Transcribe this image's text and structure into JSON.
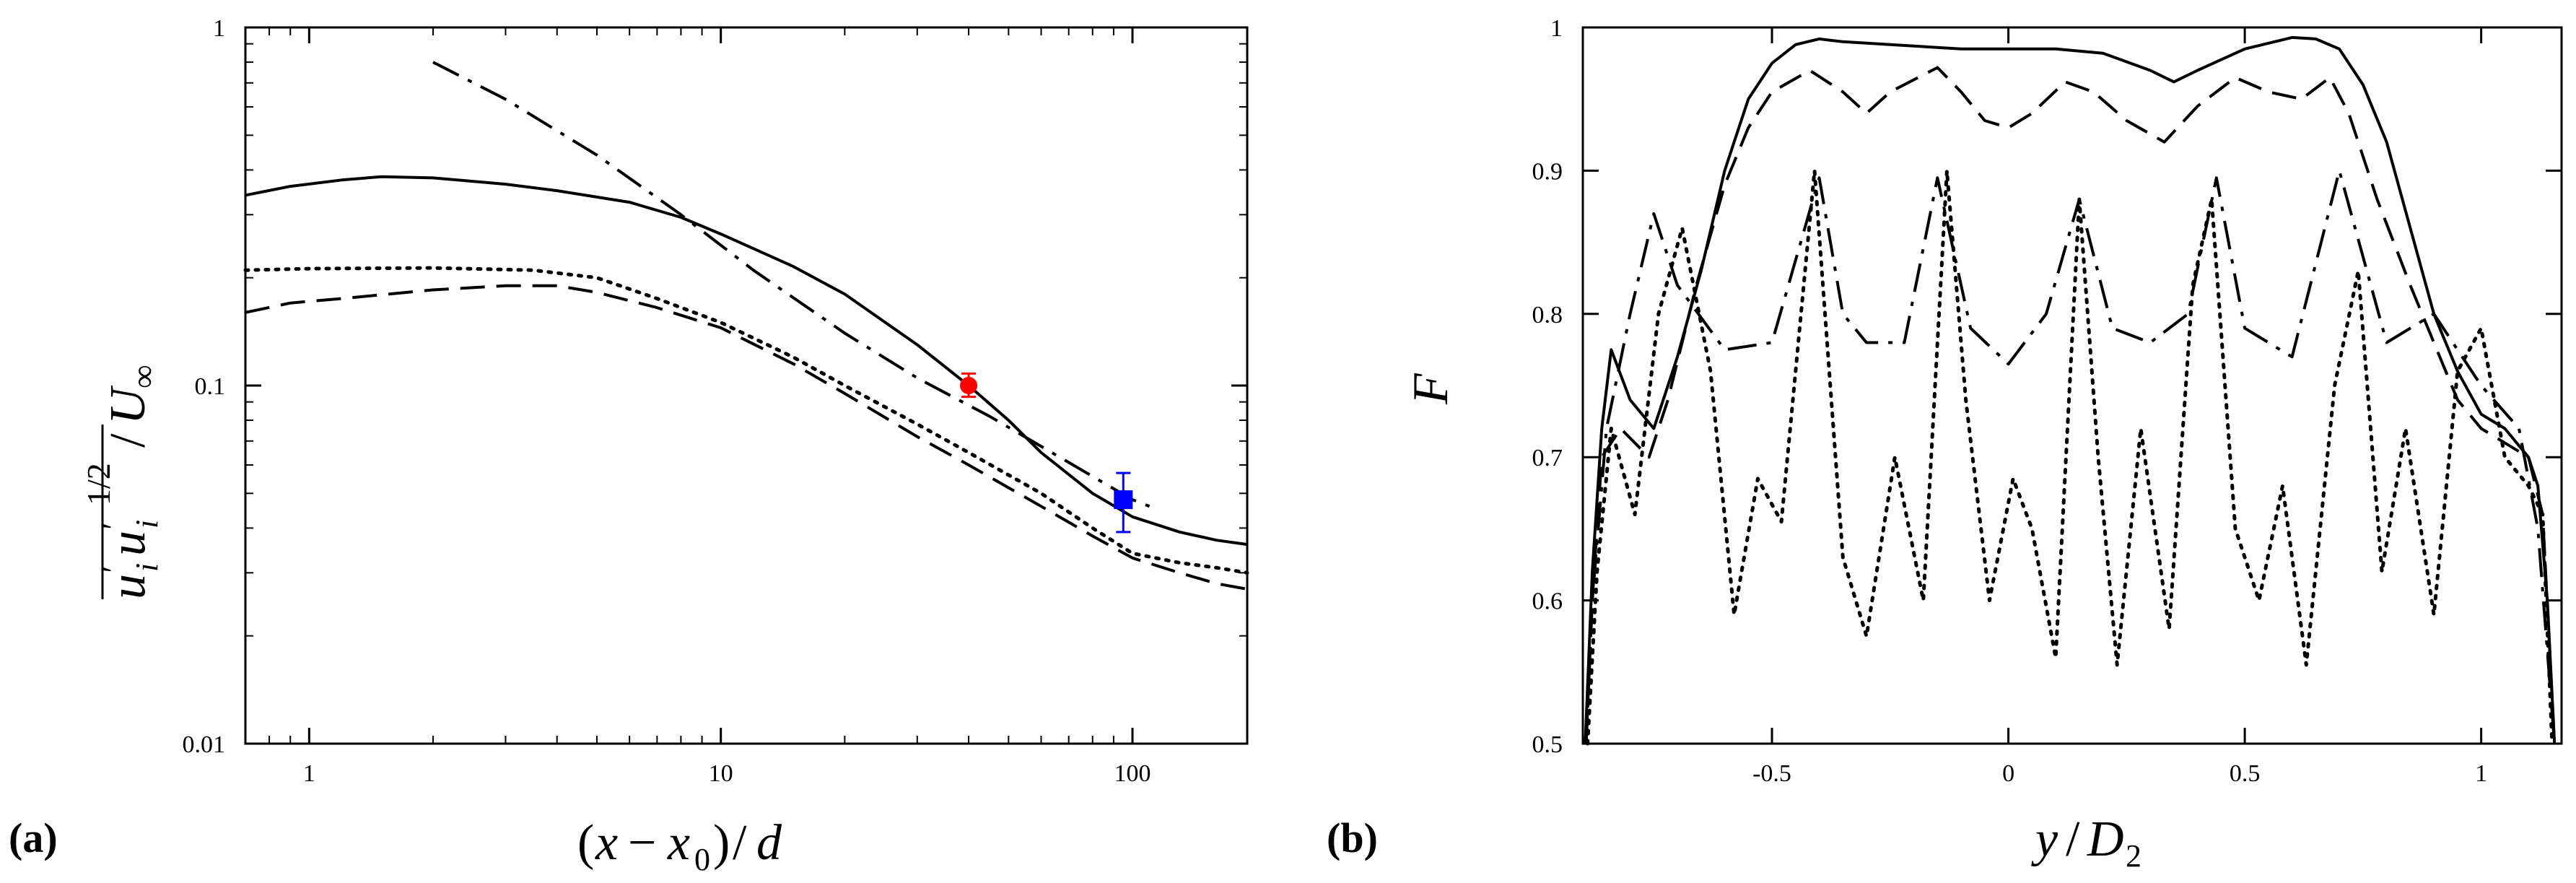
{
  "panels": [
    {
      "label": "(a)",
      "chart_data": {
        "type": "line",
        "xscale": "log",
        "yscale": "log",
        "xlim": [
          0.7,
          190
        ],
        "ylim": [
          0.01,
          1
        ],
        "xlabel": "(x − x0)/d",
        "ylabel": "u'i u'i^(1/2) / U∞",
        "xticks": [
          1,
          10,
          100
        ],
        "xtick_labels": [
          "1",
          "10",
          "100"
        ],
        "yticks": [
          0.01,
          0.1,
          1
        ],
        "ytick_labels": [
          "0.01",
          "0.1",
          "1"
        ],
        "series": [
          {
            "name": "solid",
            "style": "solid",
            "points": [
              [
                0.7,
                0.34
              ],
              [
                0.9,
                0.36
              ],
              [
                1.2,
                0.375
              ],
              [
                1.5,
                0.383
              ],
              [
                2,
                0.38
              ],
              [
                3,
                0.365
              ],
              [
                4,
                0.35
              ],
              [
                6,
                0.325
              ],
              [
                8,
                0.295
              ],
              [
                10,
                0.265
              ],
              [
                15,
                0.215
              ],
              [
                20,
                0.18
              ],
              [
                30,
                0.13
              ],
              [
                40,
                0.1
              ],
              [
                50,
                0.08
              ],
              [
                60,
                0.065
              ],
              [
                80,
                0.05
              ],
              [
                100,
                0.043
              ],
              [
                130,
                0.039
              ],
              [
                160,
                0.037
              ],
              [
                190,
                0.036
              ]
            ]
          },
          {
            "name": "dotted",
            "style": "dotted",
            "points": [
              [
                0.7,
                0.21
              ],
              [
                1,
                0.212
              ],
              [
                2,
                0.213
              ],
              [
                3.5,
                0.21
              ],
              [
                5,
                0.2
              ],
              [
                7,
                0.175
              ],
              [
                10,
                0.15
              ],
              [
                15,
                0.12
              ],
              [
                20,
                0.1
              ],
              [
                30,
                0.078
              ],
              [
                40,
                0.065
              ],
              [
                60,
                0.05
              ],
              [
                80,
                0.04
              ],
              [
                100,
                0.034
              ],
              [
                130,
                0.032
              ],
              [
                160,
                0.031
              ],
              [
                190,
                0.03
              ]
            ]
          },
          {
            "name": "dashed",
            "style": "dashed",
            "points": [
              [
                0.7,
                0.16
              ],
              [
                0.9,
                0.17
              ],
              [
                1.2,
                0.175
              ],
              [
                2,
                0.185
              ],
              [
                3,
                0.19
              ],
              [
                4,
                0.19
              ],
              [
                5,
                0.182
              ],
              [
                7,
                0.165
              ],
              [
                10,
                0.145
              ],
              [
                15,
                0.115
              ],
              [
                20,
                0.095
              ],
              [
                30,
                0.072
              ],
              [
                40,
                0.06
              ],
              [
                60,
                0.046
              ],
              [
                80,
                0.038
              ],
              [
                100,
                0.033
              ],
              [
                130,
                0.03
              ],
              [
                160,
                0.028
              ],
              [
                190,
                0.027
              ]
            ]
          },
          {
            "name": "dash-dot",
            "style": "dashdot",
            "points": [
              [
                2,
                0.8
              ],
              [
                3,
                0.63
              ],
              [
                5,
                0.44
              ],
              [
                8,
                0.3
              ],
              [
                12,
                0.21
              ],
              [
                20,
                0.14
              ],
              [
                30,
                0.105
              ],
              [
                45,
                0.082
              ],
              [
                70,
                0.061
              ],
              [
                100,
                0.048
              ],
              [
                110,
                0.046
              ]
            ]
          }
        ],
        "markers": [
          {
            "name": "red-circle",
            "shape": "circle",
            "color": "#ff0000",
            "x": 40,
            "y": 0.1,
            "yerr": [
              0.093,
              0.108
            ]
          },
          {
            "name": "blue-square",
            "shape": "square",
            "color": "#0000ff",
            "x": 95,
            "y": 0.048,
            "yerr": [
              0.039,
              0.057
            ]
          }
        ]
      }
    },
    {
      "label": "(b)",
      "chart_data": {
        "type": "line",
        "xlim": [
          -0.9,
          1.17
        ],
        "ylim": [
          0.5,
          1.0
        ],
        "xlabel": "y/D2",
        "ylabel": "F",
        "xticks": [
          -0.5,
          0,
          0.5,
          1
        ],
        "xtick_labels": [
          "-0.5",
          "0",
          "0.5",
          "1"
        ],
        "yticks": [
          0.5,
          0.6,
          0.7,
          0.8,
          0.9,
          1.0
        ],
        "ytick_labels": [
          "0.5",
          "0.6",
          "0.7",
          "0.8",
          "0.9",
          "1"
        ],
        "series": [
          {
            "name": "solid",
            "style": "solid",
            "points": [
              [
                -0.895,
                0.5
              ],
              [
                -0.88,
                0.62
              ],
              [
                -0.86,
                0.72
              ],
              [
                -0.84,
                0.775
              ],
              [
                -0.8,
                0.74
              ],
              [
                -0.75,
                0.72
              ],
              [
                -0.7,
                0.77
              ],
              [
                -0.65,
                0.83
              ],
              [
                -0.6,
                0.9
              ],
              [
                -0.55,
                0.95
              ],
              [
                -0.5,
                0.975
              ],
              [
                -0.45,
                0.988
              ],
              [
                -0.4,
                0.992
              ],
              [
                -0.35,
                0.99
              ],
              [
                -0.25,
                0.988
              ],
              [
                -0.1,
                0.985
              ],
              [
                0,
                0.985
              ],
              [
                0.1,
                0.985
              ],
              [
                0.2,
                0.982
              ],
              [
                0.3,
                0.97
              ],
              [
                0.35,
                0.962
              ],
              [
                0.4,
                0.97
              ],
              [
                0.5,
                0.985
              ],
              [
                0.6,
                0.993
              ],
              [
                0.65,
                0.992
              ],
              [
                0.7,
                0.985
              ],
              [
                0.75,
                0.96
              ],
              [
                0.8,
                0.92
              ],
              [
                0.85,
                0.86
              ],
              [
                0.9,
                0.8
              ],
              [
                0.95,
                0.76
              ],
              [
                1,
                0.73
              ],
              [
                1.05,
                0.72
              ],
              [
                1.1,
                0.7
              ],
              [
                1.12,
                0.68
              ],
              [
                1.14,
                0.6
              ],
              [
                1.155,
                0.5
              ]
            ]
          },
          {
            "name": "dashed",
            "style": "dashed",
            "points": [
              [
                -0.893,
                0.5
              ],
              [
                -0.88,
                0.6
              ],
              [
                -0.86,
                0.7
              ],
              [
                -0.82,
                0.72
              ],
              [
                -0.76,
                0.7
              ],
              [
                -0.72,
                0.74
              ],
              [
                -0.66,
                0.82
              ],
              [
                -0.6,
                0.89
              ],
              [
                -0.55,
                0.93
              ],
              [
                -0.5,
                0.955
              ],
              [
                -0.42,
                0.97
              ],
              [
                -0.35,
                0.955
              ],
              [
                -0.3,
                0.94
              ],
              [
                -0.25,
                0.955
              ],
              [
                -0.15,
                0.972
              ],
              [
                -0.1,
                0.955
              ],
              [
                -0.05,
                0.935
              ],
              [
                0,
                0.93
              ],
              [
                0.05,
                0.94
              ],
              [
                0.12,
                0.962
              ],
              [
                0.18,
                0.955
              ],
              [
                0.25,
                0.935
              ],
              [
                0.33,
                0.92
              ],
              [
                0.4,
                0.945
              ],
              [
                0.48,
                0.965
              ],
              [
                0.55,
                0.955
              ],
              [
                0.62,
                0.95
              ],
              [
                0.68,
                0.965
              ],
              [
                0.72,
                0.94
              ],
              [
                0.78,
                0.88
              ],
              [
                0.85,
                0.82
              ],
              [
                0.9,
                0.78
              ],
              [
                0.95,
                0.74
              ],
              [
                1.0,
                0.72
              ],
              [
                1.05,
                0.71
              ],
              [
                1.1,
                0.7
              ],
              [
                1.13,
                0.66
              ],
              [
                1.155,
                0.5
              ]
            ]
          },
          {
            "name": "dash-dot",
            "style": "dashdot",
            "points": [
              [
                -0.893,
                0.5
              ],
              [
                -0.88,
                0.6
              ],
              [
                -0.85,
                0.72
              ],
              [
                -0.8,
                0.8
              ],
              [
                -0.75,
                0.87
              ],
              [
                -0.7,
                0.82
              ],
              [
                -0.6,
                0.775
              ],
              [
                -0.5,
                0.78
              ],
              [
                -0.4,
                0.895
              ],
              [
                -0.35,
                0.8
              ],
              [
                -0.3,
                0.78
              ],
              [
                -0.22,
                0.78
              ],
              [
                -0.15,
                0.895
              ],
              [
                -0.08,
                0.79
              ],
              [
                0,
                0.765
              ],
              [
                0.08,
                0.8
              ],
              [
                0.15,
                0.88
              ],
              [
                0.22,
                0.79
              ],
              [
                0.3,
                0.78
              ],
              [
                0.38,
                0.8
              ],
              [
                0.44,
                0.895
              ],
              [
                0.5,
                0.79
              ],
              [
                0.6,
                0.77
              ],
              [
                0.7,
                0.9
              ],
              [
                0.8,
                0.78
              ],
              [
                0.9,
                0.8
              ],
              [
                1.0,
                0.75
              ],
              [
                1.08,
                0.72
              ],
              [
                1.12,
                0.65
              ],
              [
                1.155,
                0.5
              ]
            ]
          },
          {
            "name": "dotted",
            "style": "dotted",
            "points": [
              [
                -0.89,
                0.5
              ],
              [
                -0.87,
                0.62
              ],
              [
                -0.84,
                0.72
              ],
              [
                -0.79,
                0.66
              ],
              [
                -0.74,
                0.8
              ],
              [
                -0.69,
                0.86
              ],
              [
                -0.63,
                0.76
              ],
              [
                -0.58,
                0.59
              ],
              [
                -0.53,
                0.685
              ],
              [
                -0.48,
                0.655
              ],
              [
                -0.41,
                0.9
              ],
              [
                -0.35,
                0.63
              ],
              [
                -0.3,
                0.575
              ],
              [
                -0.24,
                0.7
              ],
              [
                -0.18,
                0.6
              ],
              [
                -0.13,
                0.9
              ],
              [
                -0.09,
                0.74
              ],
              [
                -0.04,
                0.6
              ],
              [
                0.01,
                0.685
              ],
              [
                0.05,
                0.65
              ],
              [
                0.1,
                0.56
              ],
              [
                0.15,
                0.88
              ],
              [
                0.19,
                0.7
              ],
              [
                0.23,
                0.555
              ],
              [
                0.28,
                0.72
              ],
              [
                0.34,
                0.58
              ],
              [
                0.39,
                0.82
              ],
              [
                0.43,
                0.88
              ],
              [
                0.48,
                0.65
              ],
              [
                0.53,
                0.6
              ],
              [
                0.58,
                0.68
              ],
              [
                0.63,
                0.555
              ],
              [
                0.69,
                0.75
              ],
              [
                0.74,
                0.83
              ],
              [
                0.79,
                0.62
              ],
              [
                0.84,
                0.72
              ],
              [
                0.9,
                0.59
              ],
              [
                0.95,
                0.76
              ],
              [
                1.0,
                0.79
              ],
              [
                1.05,
                0.7
              ],
              [
                1.1,
                0.68
              ],
              [
                1.13,
                0.66
              ],
              [
                1.15,
                0.5
              ]
            ]
          }
        ]
      }
    }
  ]
}
